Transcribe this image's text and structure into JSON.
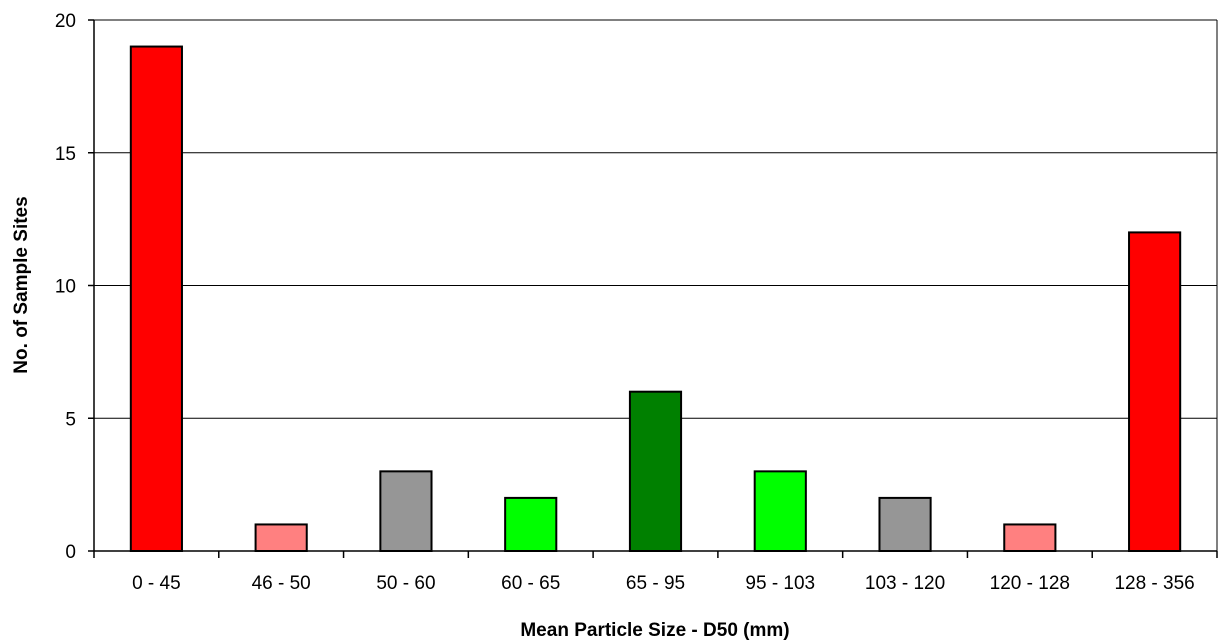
{
  "chart_data": {
    "type": "bar",
    "title": "",
    "xlabel": "Mean Particle Size - D50 (mm)",
    "ylabel": "No. of Sample Sites",
    "ylim": [
      0,
      20
    ],
    "yticks": [
      0,
      5,
      10,
      15,
      20
    ],
    "grid": true,
    "legend": "none",
    "categories": [
      "0 - 45",
      "46 - 50",
      "50 - 60",
      "60 - 65",
      "65 - 95",
      "95 - 103",
      "103 - 120",
      "120 - 128",
      "128 - 356"
    ],
    "values": [
      19,
      1,
      3,
      2,
      6,
      3,
      2,
      1,
      12
    ],
    "colors": [
      "#ff0000",
      "#ff8080",
      "#969696",
      "#00ff00",
      "#008000",
      "#00ff00",
      "#969696",
      "#ff8080",
      "#ff0000"
    ]
  }
}
